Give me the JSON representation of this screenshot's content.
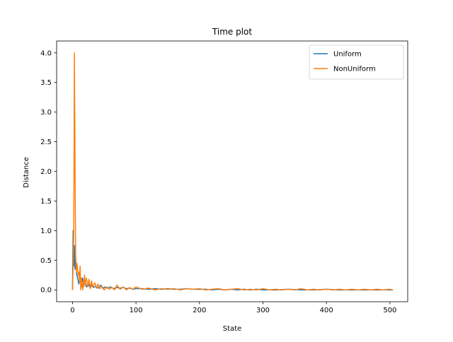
{
  "chart_data": {
    "type": "line",
    "title": "Time plot",
    "xlabel": "State",
    "ylabel": "Distance",
    "xlim": [
      -25,
      528
    ],
    "ylim": [
      -0.2,
      4.2
    ],
    "xticks": [
      0,
      100,
      200,
      300,
      400,
      500
    ],
    "yticks": [
      0.0,
      0.5,
      1.0,
      1.5,
      2.0,
      2.5,
      3.0,
      3.5,
      4.0
    ],
    "xtick_labels": [
      "0",
      "100",
      "200",
      "300",
      "400",
      "500"
    ],
    "ytick_labels": [
      "0.0",
      "0.5",
      "1.0",
      "1.5",
      "2.0",
      "2.5",
      "3.0",
      "3.5",
      "4.0"
    ],
    "grid": false,
    "legend": "top-right",
    "series": [
      {
        "name": "Uniform",
        "color": "#1f77b4",
        "x": [
          0,
          1,
          2,
          3,
          4,
          5,
          6,
          7,
          8,
          9,
          10,
          12,
          14,
          16,
          18,
          20,
          22,
          25,
          28,
          30,
          33,
          36,
          40,
          45,
          48,
          50,
          55,
          60,
          65,
          70,
          75,
          80,
          85,
          90,
          95,
          100,
          110,
          120,
          130,
          140,
          150,
          160,
          170,
          180,
          190,
          200,
          210,
          220,
          230,
          240,
          250,
          260,
          270,
          280,
          290,
          300,
          320,
          340,
          360,
          380,
          400,
          420,
          440,
          460,
          480,
          500,
          505
        ],
        "y": [
          0.0,
          1.0,
          0.4,
          0.75,
          0.35,
          0.5,
          0.3,
          0.25,
          0.2,
          0.15,
          0.1,
          0.2,
          0.05,
          0.2,
          0.08,
          0.12,
          0.05,
          0.1,
          0.03,
          0.08,
          0.04,
          0.06,
          0.03,
          0.08,
          0.02,
          0.05,
          0.03,
          0.05,
          0.02,
          0.04,
          0.03,
          0.04,
          0.02,
          0.03,
          0.01,
          0.02,
          0.02,
          0.01,
          0.02,
          0.01,
          0.02,
          0.01,
          0.01,
          0.02,
          0.01,
          0.01,
          0.01,
          0.0,
          0.01,
          0.0,
          0.01,
          0.0,
          0.01,
          0.0,
          0.01,
          0.0,
          0.0,
          0.01,
          0.0,
          0.0,
          0.01,
          0.0,
          0.0,
          0.0,
          0.0,
          0.0,
          0.0
        ]
      },
      {
        "name": "NonUniform",
        "color": "#ff7f0e",
        "x": [
          0,
          1,
          2,
          3,
          4,
          5,
          6,
          7,
          8,
          9,
          10,
          11,
          12,
          13,
          14,
          15,
          16,
          17,
          18,
          19,
          20,
          22,
          24,
          26,
          28,
          30,
          32,
          35,
          38,
          40,
          43,
          46,
          50,
          54,
          58,
          62,
          66,
          70,
          75,
          80,
          85,
          90,
          95,
          100,
          110,
          120,
          130,
          140,
          150,
          160,
          170,
          180,
          190,
          200,
          210,
          220,
          230,
          240,
          250,
          260,
          270,
          280,
          290,
          300,
          310,
          320,
          330,
          340,
          350,
          360,
          370,
          380,
          390,
          400,
          410,
          420,
          430,
          440,
          450,
          460,
          470,
          480,
          490,
          500,
          505
        ],
        "y": [
          0.0,
          0.4,
          1.0,
          4.0,
          2.0,
          0.6,
          0.3,
          0.45,
          0.35,
          0.25,
          0.3,
          0.15,
          0.4,
          0.0,
          0.2,
          0.1,
          0.0,
          0.15,
          0.05,
          0.25,
          0.1,
          0.2,
          0.05,
          0.18,
          0.02,
          0.15,
          0.05,
          0.12,
          0.03,
          0.1,
          0.02,
          0.06,
          0.0,
          0.05,
          0.01,
          0.04,
          0.0,
          0.08,
          0.01,
          0.05,
          0.0,
          0.04,
          0.01,
          0.05,
          0.01,
          0.03,
          0.0,
          0.02,
          0.01,
          0.02,
          0.0,
          0.02,
          0.01,
          0.02,
          0.0,
          0.01,
          0.02,
          0.0,
          0.01,
          0.02,
          0.0,
          0.01,
          0.0,
          0.02,
          0.0,
          0.01,
          0.0,
          0.01,
          0.0,
          0.02,
          0.0,
          0.01,
          0.0,
          0.01,
          0.0,
          0.01,
          0.0,
          0.01,
          0.0,
          0.01,
          0.0,
          0.01,
          0.0,
          0.01,
          0.0
        ]
      }
    ]
  }
}
